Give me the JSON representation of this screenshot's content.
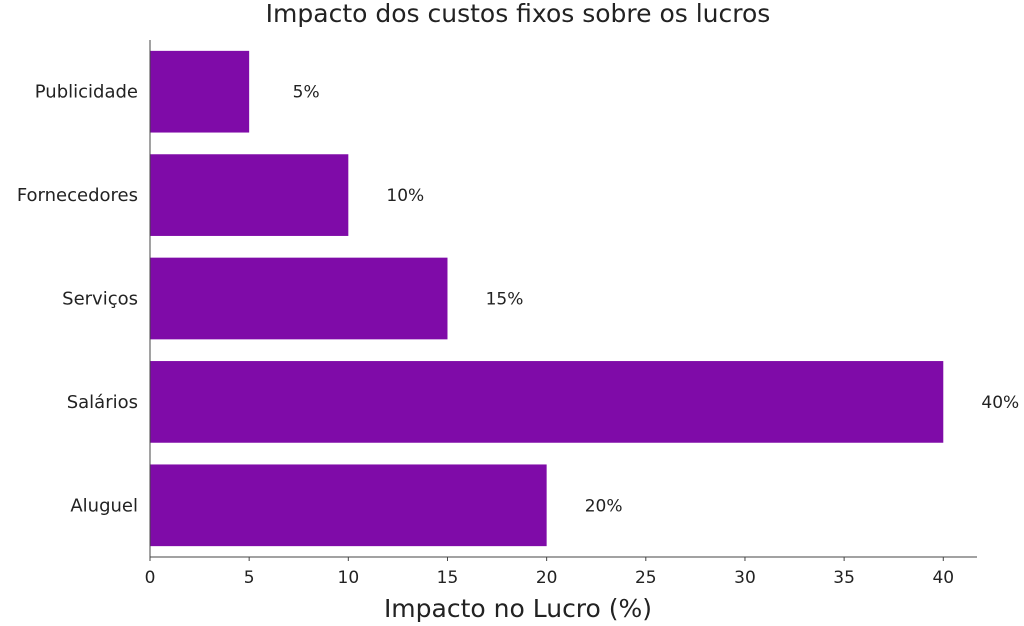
{
  "chart_data": {
    "type": "bar",
    "orientation": "horizontal",
    "title": "Impacto dos custos fixos sobre os lucros",
    "xlabel": "Impacto no Lucro (%)",
    "ylabel": "",
    "xlim": [
      0,
      41.7
    ],
    "xticks": [
      0,
      5,
      10,
      15,
      20,
      25,
      30,
      35,
      40
    ],
    "categories": [
      "Publicidade",
      "Fornecedores",
      "Serviços",
      "Salários",
      "Aluguel"
    ],
    "values": [
      5,
      10,
      15,
      40,
      20
    ],
    "data_labels": [
      "5%",
      "10%",
      "15%",
      "40%",
      "20%"
    ],
    "bar_color": "#7f0ba8",
    "grid": false,
    "legend": "none"
  }
}
